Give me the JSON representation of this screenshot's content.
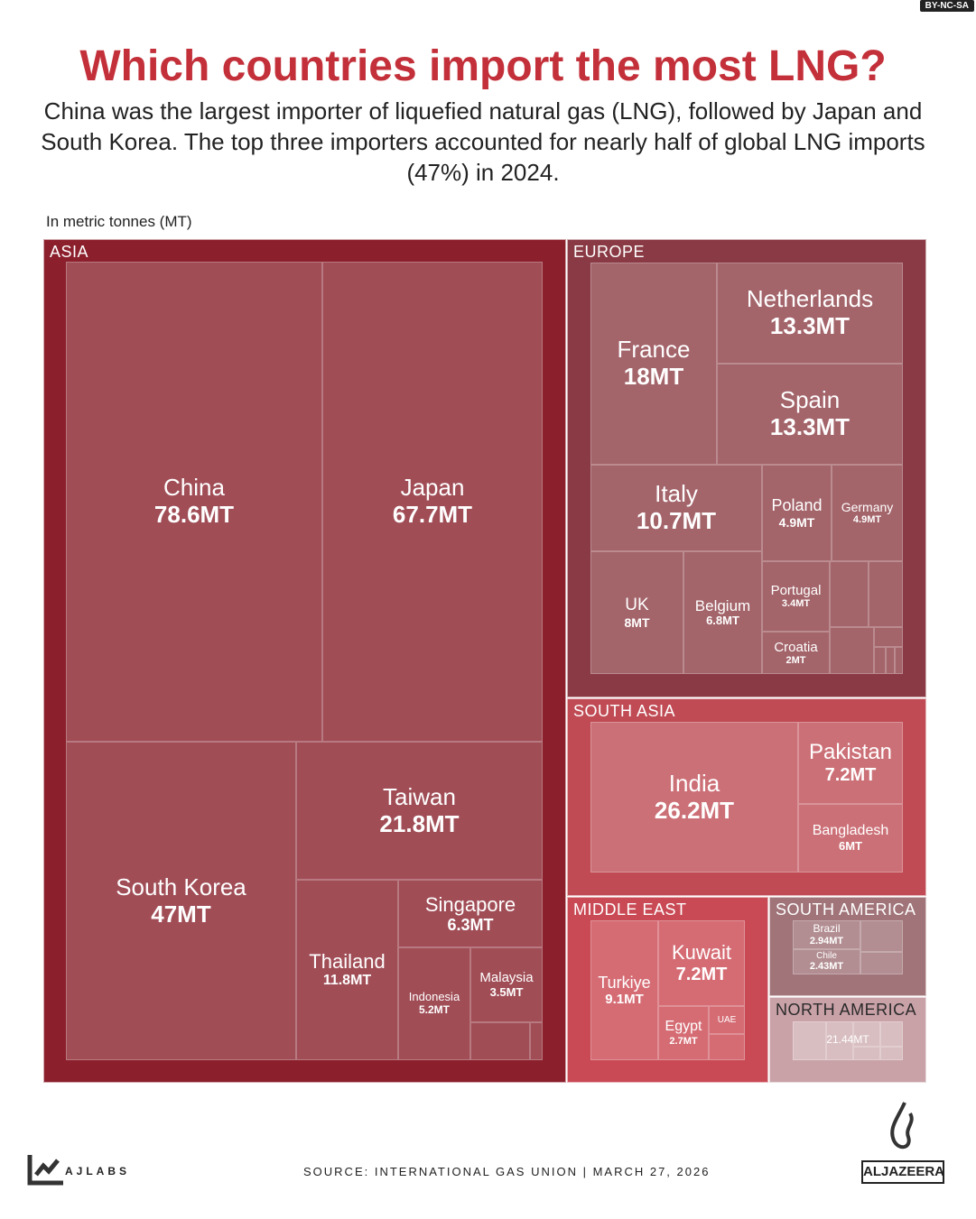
{
  "license_badge": "BY-NC-SA",
  "title": "Which countries import the most LNG?",
  "subtitle": "China was the largest importer of liquefied natural gas (LNG), followed by Japan and South Korea. The top three importers accounted for nearly half of global LNG imports (47%) in 2024.",
  "unit_note": "In metric tonnes (MT)",
  "footer": {
    "brand": "AJLABS",
    "source": "SOURCE:  INTERNATIONAL GAS UNION    |    MARCH 27, 2026",
    "logo": "ALJAZEERA"
  },
  "colors": {
    "title": "#c3303a",
    "asia": "#8b1f2c",
    "europe": "#8a3a44",
    "south_asia": "#c04b55",
    "middle_east": "#c94a55",
    "south_america": "#a07479",
    "north_america": "#c9a2a8"
  },
  "chart_data": {
    "type": "treemap",
    "title": "Which countries import the most LNG?",
    "unit": "MT",
    "regions": [
      {
        "name": "ASIA",
        "countries": [
          {
            "name": "China",
            "value": 78.6,
            "label": "78.6MT"
          },
          {
            "name": "Japan",
            "value": 67.7,
            "label": "67.7MT"
          },
          {
            "name": "South Korea",
            "value": 47,
            "label": "47MT"
          },
          {
            "name": "Taiwan",
            "value": 21.8,
            "label": "21.8MT"
          },
          {
            "name": "Thailand",
            "value": 11.8,
            "label": "11.8MT"
          },
          {
            "name": "Singapore",
            "value": 6.3,
            "label": "6.3MT"
          },
          {
            "name": "Indonesia",
            "value": 5.2,
            "label": "5.2MT"
          },
          {
            "name": "Malaysia",
            "value": 3.5,
            "label": "3.5MT"
          }
        ]
      },
      {
        "name": "EUROPE",
        "countries": [
          {
            "name": "France",
            "value": 18,
            "label": "18MT"
          },
          {
            "name": "Netherlands",
            "value": 13.3,
            "label": "13.3MT"
          },
          {
            "name": "Spain",
            "value": 13.3,
            "label": "13.3MT"
          },
          {
            "name": "Italy",
            "value": 10.7,
            "label": "10.7MT"
          },
          {
            "name": "Poland",
            "value": 4.9,
            "label": "4.9MT"
          },
          {
            "name": "Germany",
            "value": 4.9,
            "label": "4.9MT"
          },
          {
            "name": "UK",
            "value": 8,
            "label": "8MT"
          },
          {
            "name": "Belgium",
            "value": 6.8,
            "label": "6.8MT"
          },
          {
            "name": "Portugal",
            "value": 3.4,
            "label": "3.4MT"
          },
          {
            "name": "Croatia",
            "value": 2,
            "label": "2MT"
          }
        ]
      },
      {
        "name": "SOUTH ASIA",
        "countries": [
          {
            "name": "India",
            "value": 26.2,
            "label": "26.2MT"
          },
          {
            "name": "Pakistan",
            "value": 7.2,
            "label": "7.2MT"
          },
          {
            "name": "Bangladesh",
            "value": 6,
            "label": "6MT"
          }
        ]
      },
      {
        "name": "MIDDLE EAST",
        "countries": [
          {
            "name": "Turkiye",
            "value": 9.1,
            "label": "9.1MT"
          },
          {
            "name": "Kuwait",
            "value": 7.2,
            "label": "7.2MT"
          },
          {
            "name": "Egypt",
            "value": 2.7,
            "label": "2.7MT"
          },
          {
            "name": "UAE",
            "value": null,
            "label": ""
          }
        ]
      },
      {
        "name": "SOUTH AMERICA",
        "countries": [
          {
            "name": "Brazil",
            "value": 2.94,
            "label": "2.94MT"
          },
          {
            "name": "Chile",
            "value": 2.43,
            "label": "2.43MT"
          }
        ]
      },
      {
        "name": "NORTH AMERICA",
        "total_label": "21.44MT",
        "countries": []
      }
    ]
  }
}
